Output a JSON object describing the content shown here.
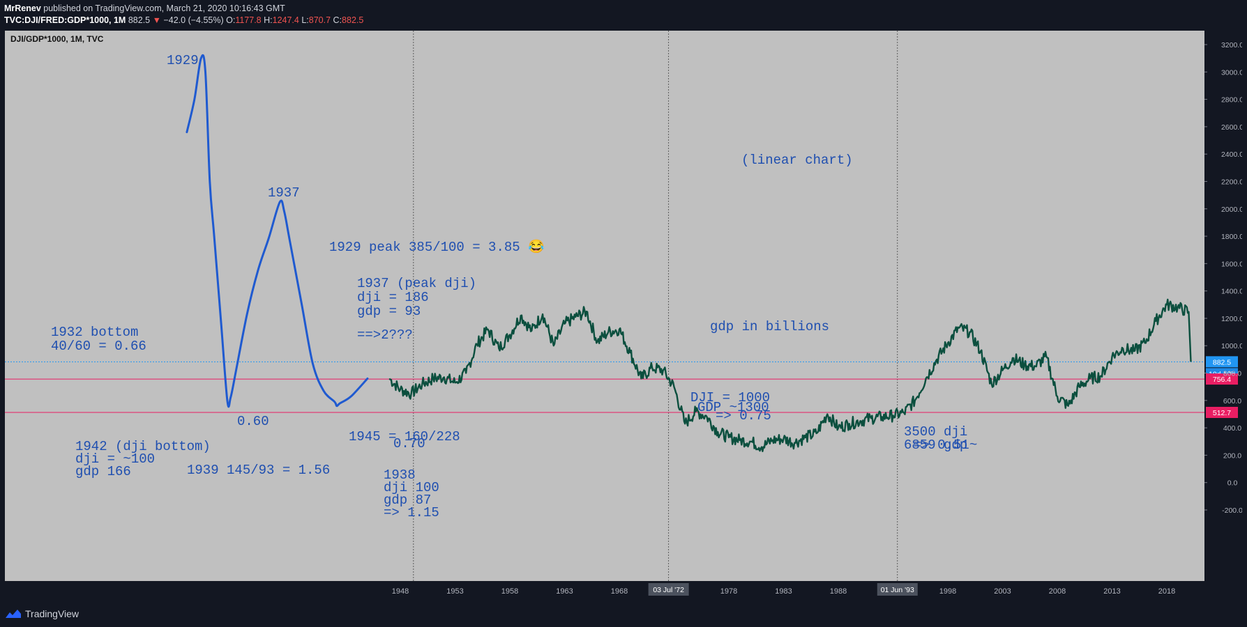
{
  "header": {
    "author": "MrRenev",
    "published": "published on TradingView.com, March 21, 2020 10:16:43 GMT",
    "symbol": "TVC:DJI/FRED:GDP*1000, 1M",
    "last": "882.5",
    "change_arrow": "▼",
    "change": "−42.0 (−4.55%)",
    "o_label": "O:",
    "o_value": "1177.8",
    "h_label": "H:",
    "h_value": "1247.4",
    "l_label": "L:",
    "l_value": "870.7",
    "c_label": "C:",
    "c_value": "882.5"
  },
  "chart_legend": "DJI/GDP*1000, 1M, TVC",
  "footer": {
    "brand": "TradingView"
  },
  "colors": {
    "background": "#c0c0c0",
    "series": "#0b4f3e",
    "drawing": "#1f5ad0",
    "pink": "#e91e63",
    "blue_line": "#2196f3",
    "page": "#131722"
  },
  "annotations": [
    {
      "text": "1929"
    },
    {
      "text": "1937"
    },
    {
      "text": "(linear chart)"
    },
    {
      "text": "1929 peak 385/100 = 3.85 😂"
    },
    {
      "text": "1937 (peak dji)"
    },
    {
      "text": "dji = 186"
    },
    {
      "text": "gdp = 93"
    },
    {
      "text": "==>2???"
    },
    {
      "text": "gdp in billions"
    },
    {
      "text": "1932 bottom"
    },
    {
      "text": "40/60 = 0.66"
    },
    {
      "text": "DJI = 1000"
    },
    {
      "text": "GDP ~1300"
    },
    {
      "text": "=> 0.75"
    },
    {
      "text": "0.60"
    },
    {
      "text": "1945 = 160/228"
    },
    {
      "text": "0.70"
    },
    {
      "text": "3500 dji"
    },
    {
      "text": "6859 gdp"
    },
    {
      "text": "=> 0.51~"
    },
    {
      "text": "1942 (dji bottom)"
    },
    {
      "text": "dji = ~100"
    },
    {
      "text": "gdp 166"
    },
    {
      "text": "1939 145/93 = 1.56"
    },
    {
      "text": "1938"
    },
    {
      "text": "dji 100"
    },
    {
      "text": "gdp 87"
    },
    {
      "text": "=> 1.15"
    }
  ],
  "chart_data": {
    "type": "line",
    "title": "DJI/GDP*1000, 1M, TVC",
    "y_ticks": [
      "3200.0",
      "3000.0",
      "2800.0",
      "2600.0",
      "2400.0",
      "2200.0",
      "2000.0",
      "1800.0",
      "1600.0",
      "1400.0",
      "1200.0",
      "1000.0",
      "800.0",
      "600.0",
      "400.0",
      "200.0",
      "0.0",
      "-200.0"
    ],
    "x_ticks": [
      "1948",
      "1953",
      "1958",
      "1963",
      "1968",
      "1978",
      "1983",
      "1988",
      "1998",
      "2003",
      "2008",
      "2013",
      "2018"
    ],
    "x_badges": [
      "03 Jul '72",
      "01 Jun '93"
    ],
    "ylim": [
      -200,
      3200
    ],
    "xlim": [
      1918,
      2021
    ],
    "price_labels": [
      {
        "value": 882.5,
        "text": "882.5"
      },
      {
        "text": "10d 10h"
      },
      {
        "value": 756.4,
        "text": "756.4"
      },
      {
        "value": 512.7,
        "text": "512.7"
      }
    ],
    "vertical_lines": [
      1949.2,
      1972.5,
      1993.4
    ],
    "series": [
      {
        "x": [
          1947.0,
          1948,
          1949,
          1950,
          1951,
          1952,
          1953,
          1954,
          1955,
          1956,
          1957,
          1958,
          1959,
          1960,
          1961,
          1962,
          1963,
          1964,
          1965,
          1966,
          1967,
          1968,
          1969,
          1970,
          1971,
          1972,
          1973,
          1974,
          1975,
          1976,
          1977,
          1978,
          1979,
          1980,
          1981,
          1982,
          1983,
          1984,
          1985,
          1986,
          1987,
          1988,
          1989,
          1990,
          1991,
          1992,
          1993,
          1994,
          1995,
          1996,
          1997,
          1998,
          1999,
          2000,
          2001,
          2002,
          2003,
          2004,
          2005,
          2006,
          2007,
          2008,
          2009,
          2010,
          2011,
          2012,
          2013,
          2014,
          2015,
          2016,
          2017,
          2018,
          2019,
          2020.0,
          2020.2
        ],
        "y": [
          760,
          680,
          650,
          720,
          760,
          770,
          730,
          800,
          1010,
          1120,
          980,
          1080,
          1220,
          1110,
          1230,
          1000,
          1160,
          1210,
          1250,
          1030,
          1100,
          1120,
          950,
          760,
          840,
          820,
          700,
          430,
          520,
          480,
          370,
          330,
          310,
          300,
          260,
          310,
          320,
          290,
          330,
          360,
          500,
          400,
          430,
          450,
          470,
          480,
          490,
          510,
          600,
          760,
          900,
          1020,
          1130,
          1100,
          960,
          720,
          820,
          910,
          860,
          850,
          920,
          630,
          560,
          700,
          760,
          780,
          920,
          980,
          960,
          1020,
          1180,
          1300,
          1280,
          1247,
          882.5
        ]
      }
    ],
    "drawn_curve_note": "Blue hand-drawn curve of the pre-1947 ratio",
    "drawn_curve": {
      "x": [
        1928.5,
        1929.2,
        1929.8,
        1930.2,
        1930.6,
        1931.0,
        1931.6,
        1932.2,
        1932.5,
        1933.0,
        1934.0,
        1935.0,
        1936.0,
        1937.0,
        1937.4,
        1937.9,
        1939.0,
        1940.0,
        1941.0,
        1942.0,
        1942.2,
        1942.5,
        1943.5,
        1945.0
      ],
      "y": [
        2560,
        2800,
        3100,
        3000,
        2200,
        1800,
        1200,
        600,
        620,
        820,
        1230,
        1550,
        1790,
        2050,
        1980,
        1770,
        1300,
        870,
        670,
        590,
        560,
        580,
        630,
        760
      ]
    }
  }
}
